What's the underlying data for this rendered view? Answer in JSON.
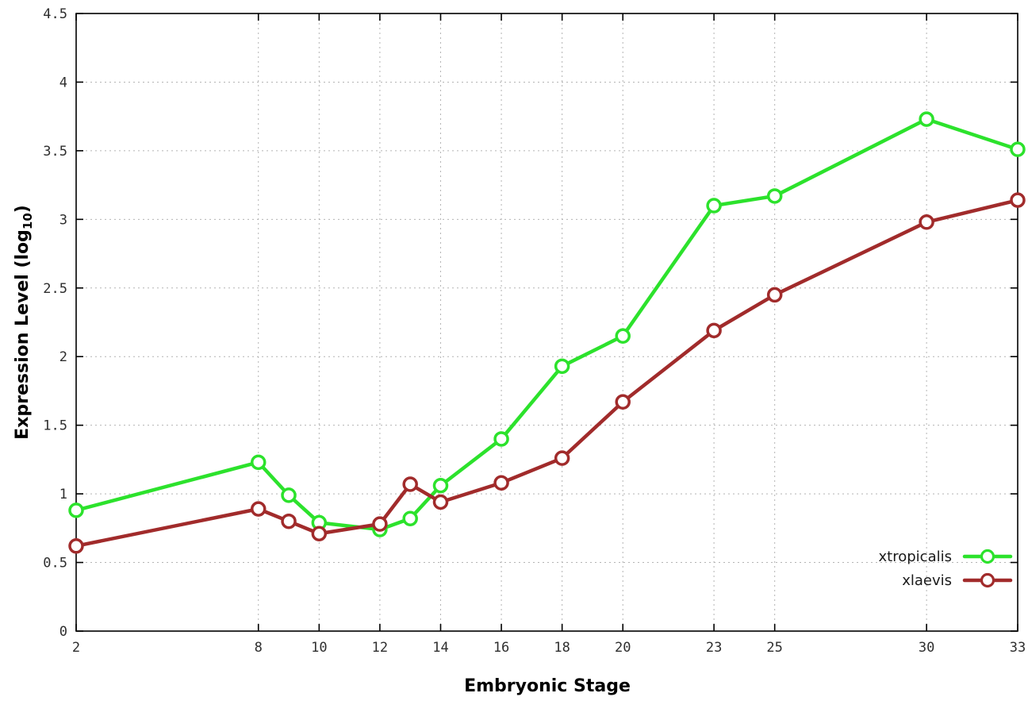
{
  "chart_data": {
    "type": "line",
    "style": "linespoints",
    "marker": "open-circle",
    "title": "",
    "xlabel": "Embryonic Stage",
    "ylabel": "Expression Level (log10)",
    "ylabel_parts": {
      "main": "Expression Level (log",
      "sub": "10",
      "close": ")"
    },
    "xlim": [
      2,
      33
    ],
    "ylim": [
      0,
      4.5
    ],
    "xticks": [
      2,
      8,
      10,
      12,
      14,
      16,
      18,
      20,
      23,
      25,
      30,
      33
    ],
    "yticks": [
      0,
      0.5,
      1,
      1.5,
      2,
      2.5,
      3,
      3.5,
      4,
      4.5
    ],
    "grid": true,
    "legend_position": "bottom-right",
    "x": [
      2,
      8,
      9,
      10,
      12,
      13,
      14,
      16,
      18,
      20,
      23,
      25,
      30,
      33
    ],
    "series": [
      {
        "name": "xtropicalis",
        "color": "#2ce22c",
        "values": [
          0.88,
          1.23,
          0.99,
          0.79,
          0.74,
          0.82,
          1.06,
          1.4,
          1.93,
          2.15,
          3.1,
          3.17,
          3.73,
          3.51
        ]
      },
      {
        "name": "xlaevis",
        "color": "#a12b2b",
        "values": [
          0.62,
          0.89,
          0.8,
          0.71,
          0.78,
          1.07,
          0.94,
          1.08,
          1.26,
          1.67,
          2.19,
          2.45,
          2.98,
          3.14
        ]
      }
    ]
  }
}
